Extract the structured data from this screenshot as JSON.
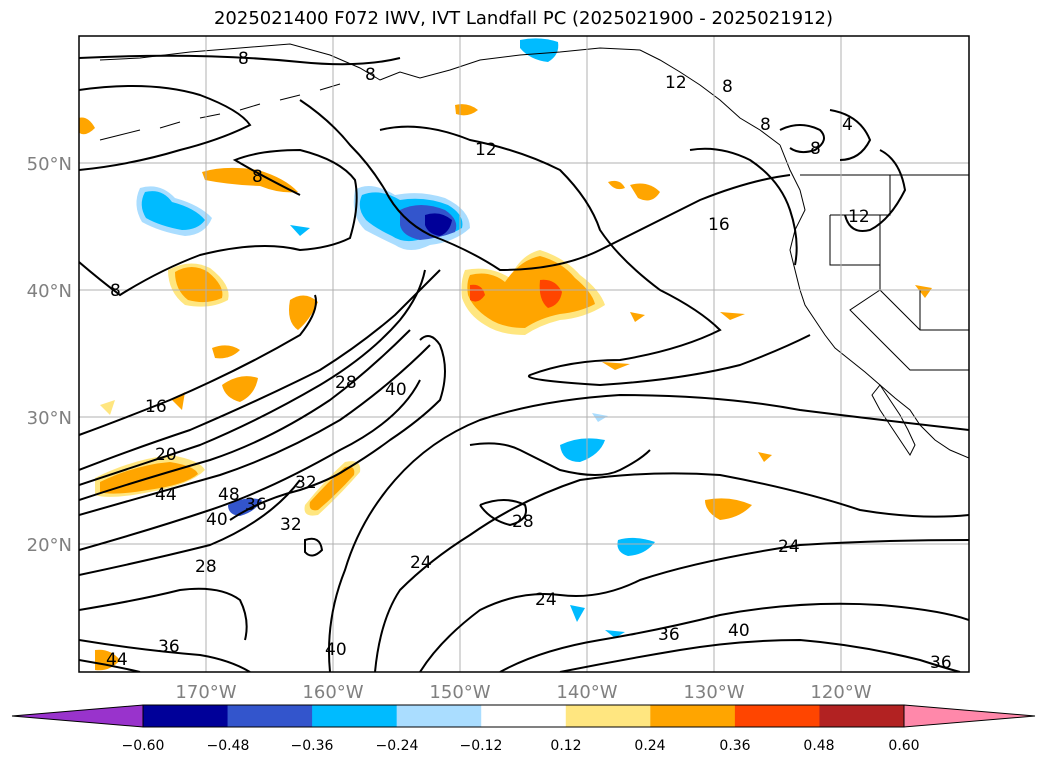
{
  "title": "2025021400 F072 IWV, IVT Landfall PC (2025021900 - 2025021912)",
  "lat_labels": [
    "50°N",
    "40°N",
    "30°N",
    "20°N"
  ],
  "lon_labels": [
    "170°W",
    "160°W",
    "150°W",
    "140°W",
    "130°W",
    "120°W"
  ],
  "contour_labels": [
    "8",
    "8",
    "8",
    "8",
    "8",
    "8",
    "8",
    "4",
    "12",
    "12",
    "12",
    "16",
    "16",
    "20",
    "24",
    "24",
    "24",
    "28",
    "28",
    "28",
    "32",
    "32",
    "36",
    "36",
    "36",
    "36",
    "40",
    "40",
    "40",
    "40",
    "44",
    "44",
    "48"
  ],
  "colorbar": {
    "tick_labels": [
      "−0.60",
      "−0.48",
      "−0.36",
      "−0.24",
      "−0.12",
      "0.12",
      "0.24",
      "0.36",
      "0.48",
      "0.60"
    ],
    "colors": [
      "#9933cc",
      "#000099",
      "#3355cc",
      "#00bbff",
      "#aaddff",
      "#ffffff",
      "#ffe680",
      "#ffa500",
      "#ff4500",
      "#b22222",
      "#ff88aa"
    ]
  },
  "colors": {
    "land_border": "#000000",
    "contour": "#000000",
    "grid": "#b0b0b0"
  }
}
